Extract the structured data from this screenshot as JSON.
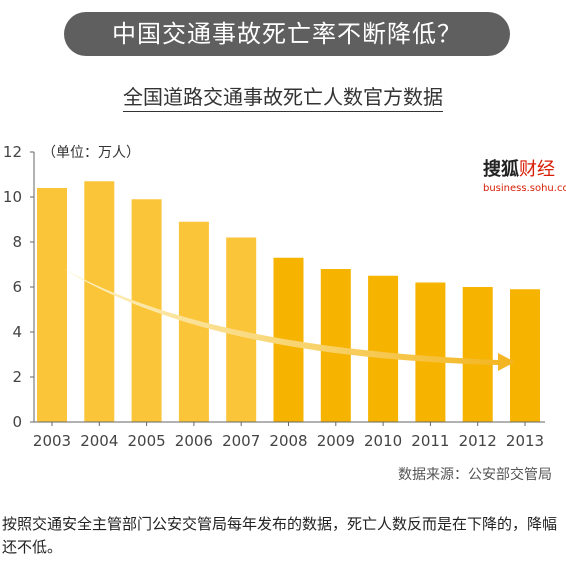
{
  "header": {
    "title": "中国交通事故死亡率不断降低？",
    "subtitle": "全国道路交通事故死亡人数官方数据"
  },
  "logo": {
    "main": "搜狐",
    "accent": "财经",
    "url": "business.sohu.com"
  },
  "source": "数据来源：公安部交管局",
  "caption": "按照交通安全主管部门公安交管局每年发布的数据，死亡人数反而是在下降的，降幅还不低。",
  "chart_data": {
    "type": "bar",
    "unit_label": "（单位：万人）",
    "categories": [
      "2003",
      "2004",
      "2005",
      "2006",
      "2007",
      "2008",
      "2009",
      "2010",
      "2011",
      "2012",
      "2013"
    ],
    "values": [
      10.4,
      10.7,
      9.9,
      8.9,
      8.2,
      7.3,
      6.8,
      6.5,
      6.2,
      6.0,
      5.9
    ],
    "ylim": [
      0,
      12
    ],
    "yticks": [
      0,
      2,
      4,
      6,
      8,
      10,
      12
    ],
    "grid": false,
    "legend": "none",
    "annotation": "downward-trend-arrow",
    "colors": {
      "bar_light": "#fbc53a",
      "bar_dark": "#f6b400",
      "arrow_light": "#fdf1c4",
      "arrow_dark": "#f3b41e",
      "axis": "#666666"
    }
  }
}
